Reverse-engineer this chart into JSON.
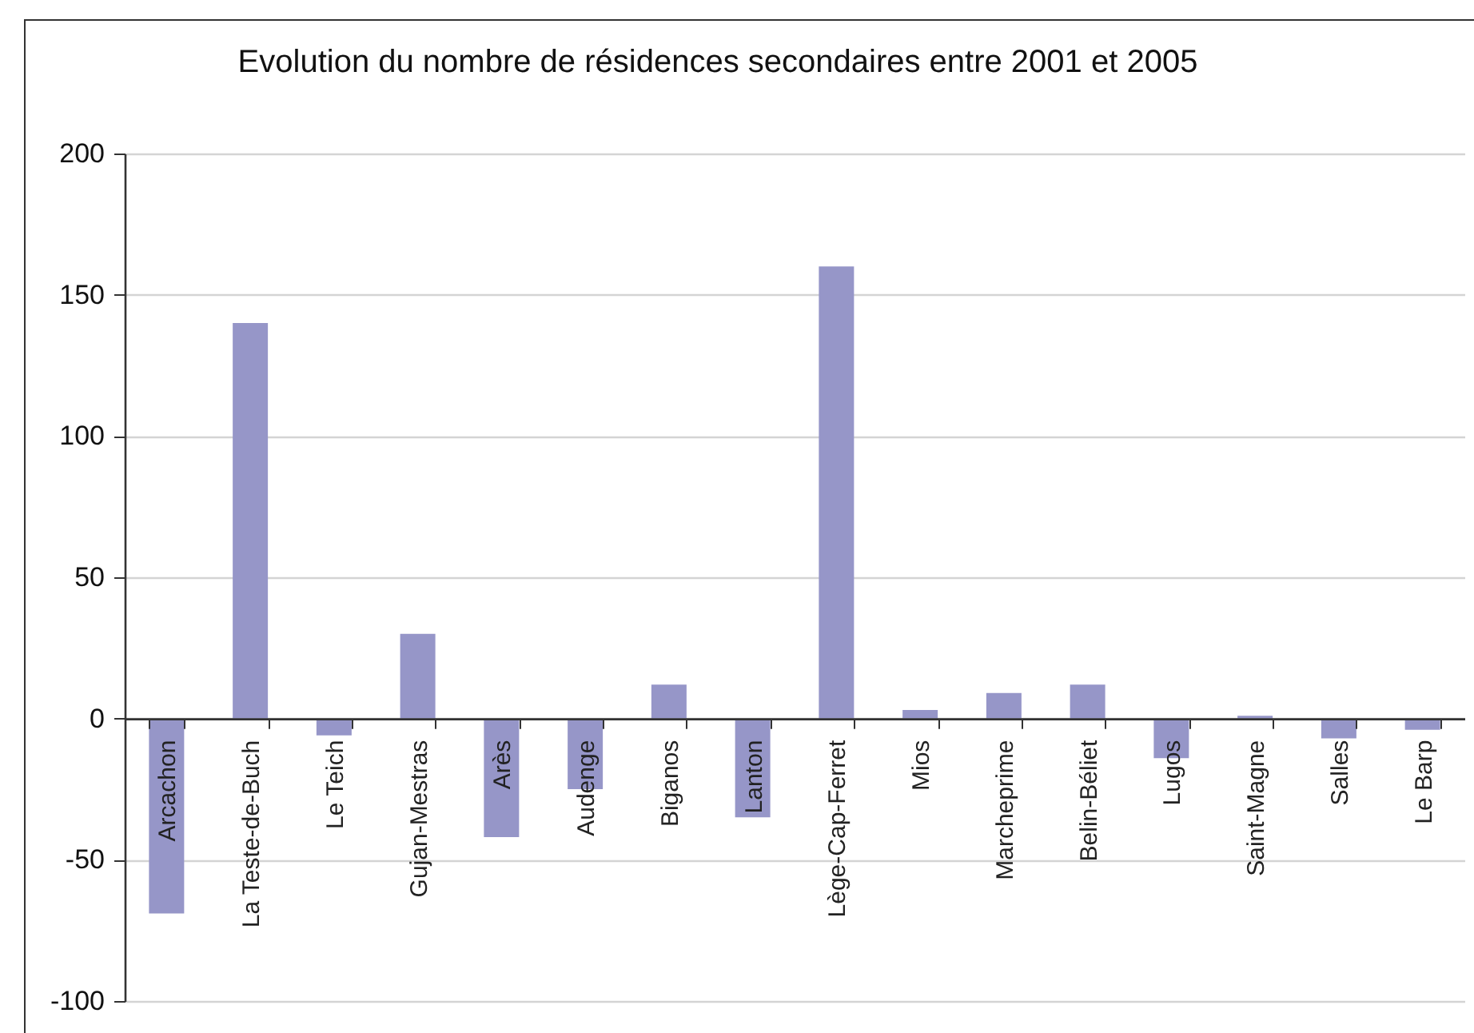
{
  "chart_data": {
    "type": "bar",
    "title": "Evolution du nombre de résidences secondaires entre 2001 et 2005",
    "categories": [
      "Arcachon",
      "La Teste-de-Buch",
      "Le Teich",
      "Gujan-Mestras",
      "Arès",
      "Audenge",
      "Biganos",
      "Lanton",
      "Lège-Cap-Ferret",
      "Mios",
      "Marcheprime",
      "Belin-Béliet",
      "Lugos",
      "Saint-Magne",
      "Salles",
      "Le Barp"
    ],
    "values": [
      -69,
      140,
      -6,
      30,
      -42,
      -25,
      12,
      -35,
      160,
      3,
      9,
      12,
      -14,
      1,
      -7,
      -4
    ],
    "color": "#9696c8",
    "ylim": [
      -100,
      200
    ],
    "yticks": [
      -100,
      -50,
      0,
      50,
      100,
      150,
      200
    ],
    "grid": "y"
  }
}
